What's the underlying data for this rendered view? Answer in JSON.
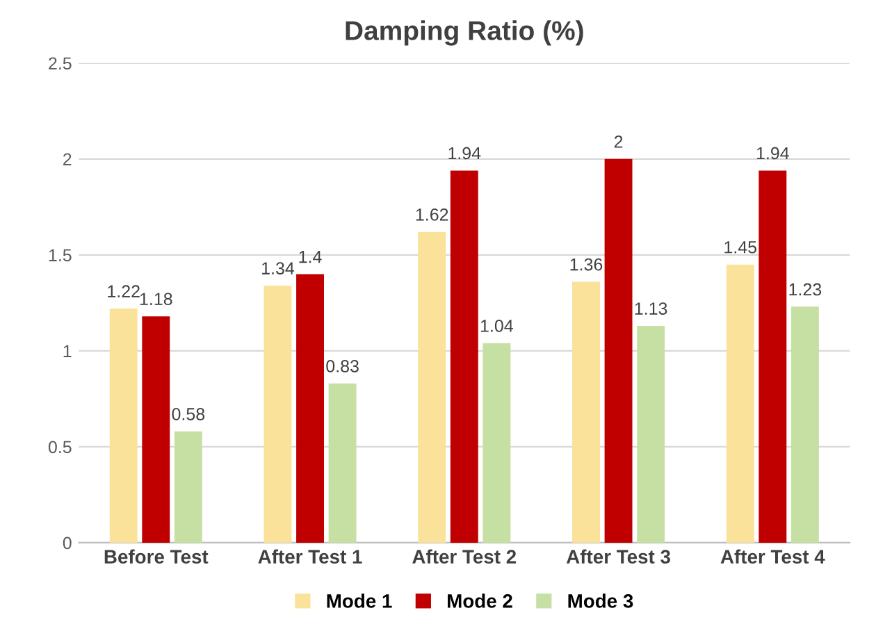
{
  "chart_data": {
    "type": "bar",
    "title": "Damping Ratio (%)",
    "categories": [
      "Before Test",
      "After Test 1",
      "After Test 2",
      "After Test 3",
      "After Test 4"
    ],
    "series": [
      {
        "name": "Mode 1",
        "color": "#fbe29a",
        "values": [
          1.22,
          1.34,
          1.62,
          1.36,
          1.45
        ]
      },
      {
        "name": "Mode 2",
        "color": "#c00000",
        "values": [
          1.18,
          1.4,
          1.94,
          2,
          1.94
        ]
      },
      {
        "name": "Mode 3",
        "color": "#c6e0a4",
        "values": [
          0.58,
          0.83,
          1.04,
          1.13,
          1.23
        ]
      }
    ],
    "ylim": [
      0,
      2.5
    ],
    "yticks": [
      0,
      0.5,
      1,
      1.5,
      2,
      2.5
    ],
    "grid": "y",
    "legend": "bottom",
    "data_labels": true
  }
}
